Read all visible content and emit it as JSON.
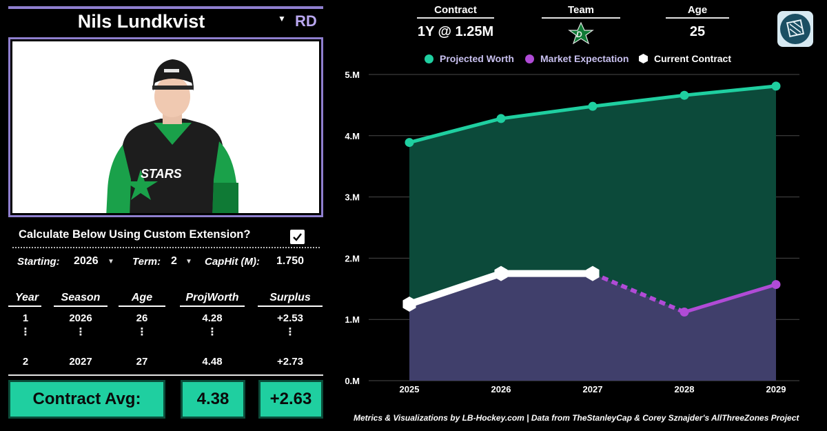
{
  "player": {
    "name": "Nils Lundkvist",
    "position": "RD"
  },
  "custom": {
    "label": "Calculate Below Using Custom Extension?",
    "checked": true
  },
  "params": {
    "starting_label": "Starting:",
    "starting_value": "2026",
    "term_label": "Term:",
    "term_value": "2",
    "caphit_label": "CapHit (M):",
    "caphit_value": "1.750"
  },
  "table": {
    "headers": [
      "Year",
      "Season",
      "Age",
      "ProjWorth",
      "Surplus"
    ],
    "rows": [
      [
        "1",
        "2026",
        "26",
        "4.28",
        "+2.53"
      ],
      [
        "2",
        "2027",
        "27",
        "4.48",
        "+2.73"
      ]
    ],
    "ellipsis": "⋮"
  },
  "summary": {
    "label": "Contract Avg:",
    "projworth": "4.38",
    "surplus": "+2.63"
  },
  "info": {
    "contract_label": "Contract",
    "contract_value": "1Y @ 1.25M",
    "team_label": "Team",
    "age_label": "Age",
    "age_value": "25"
  },
  "legend": {
    "projected": "Projected Worth",
    "market": "Market Expectation",
    "current": "Current Contract"
  },
  "colors": {
    "projected": "#1fcfa0",
    "projected_fill": "#0c4a3a",
    "market": "#b04bd6",
    "current": "#ffffff",
    "lower_fill": "#403f6b",
    "accent_purple": "#8f7fcf",
    "summary_bg": "#1fcfa0"
  },
  "icons": {
    "team": "dallas-stars-logo",
    "brand": "lb-hockey-logo",
    "check": "checkmark-icon",
    "dropdown": "caret-down-icon"
  },
  "chart_data": {
    "type": "area",
    "x": [
      2025,
      2026,
      2027,
      2028,
      2029
    ],
    "ylim": [
      0,
      5
    ],
    "y_ticks": [
      "0.M",
      "1.M",
      "2.M",
      "3.M",
      "4.M",
      "5.M"
    ],
    "series": [
      {
        "name": "Projected Worth",
        "values": [
          3.89,
          4.28,
          4.48,
          4.66,
          4.81
        ]
      },
      {
        "name": "Market Expectation",
        "values": [
          null,
          null,
          1.75,
          1.12,
          1.57
        ]
      },
      {
        "name": "Current Contract",
        "values": [
          1.25,
          1.75,
          1.75,
          null,
          null
        ]
      }
    ],
    "grid": true
  },
  "footer": "Metrics & Visualizations by LB-Hockey.com  |  Data from TheStanleyCap & Corey Sznajder's AllThreeZones Project"
}
